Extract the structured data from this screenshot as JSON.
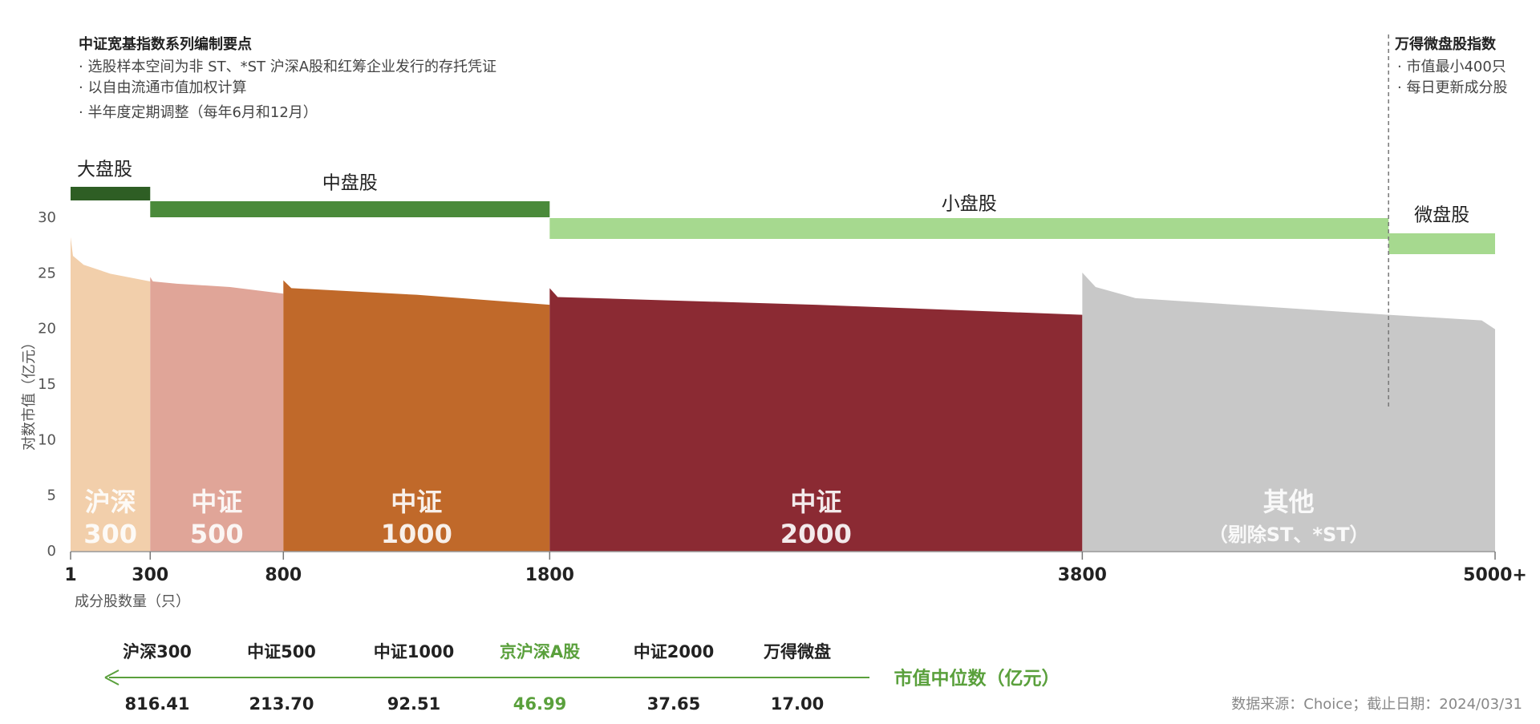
{
  "chart_data": {
    "type": "area",
    "y_label": "对数市值（亿元）",
    "x_label": "成分股数量（只）",
    "xlim": [
      1,
      5350
    ],
    "xticks": [
      1,
      300,
      800,
      1800,
      3800,
      {
        "value": 5350,
        "label": "5000+"
      }
    ],
    "ylim": [
      0,
      30
    ],
    "yticks": [
      0,
      5,
      10,
      15,
      20,
      25,
      30
    ],
    "series": [
      {
        "name": "沪深300",
        "label_lines": [
          "沪深",
          "300"
        ],
        "color": "#f2cfab",
        "x": [
          1,
          10,
          50,
          150,
          300
        ],
        "values": [
          28.3,
          26.6,
          25.8,
          25.0,
          24.3
        ]
      },
      {
        "name": "中证500",
        "label_lines": [
          "中证",
          "500"
        ],
        "color": "#e0a598",
        "x": [
          300,
          310,
          400,
          600,
          800
        ],
        "values": [
          24.7,
          24.3,
          24.1,
          23.8,
          23.2
        ]
      },
      {
        "name": "中证1000",
        "label_lines": [
          "中证",
          "1000"
        ],
        "color": "#c0692a",
        "x": [
          800,
          830,
          1300,
          1800
        ],
        "values": [
          24.4,
          23.7,
          23.1,
          22.2
        ]
      },
      {
        "name": "中证2000",
        "label_lines": [
          "中证",
          "2000"
        ],
        "color": "#8b2a33",
        "x": [
          1800,
          1830,
          2800,
          3800
        ],
        "values": [
          23.7,
          22.9,
          22.2,
          21.3
        ]
      },
      {
        "name": "其他",
        "label_lines": [
          "其他",
          "（剔除ST、*ST）"
        ],
        "color": "#c8c8c8",
        "x": [
          3800,
          3850,
          4000,
          4950,
          5300,
          5350
        ],
        "values": [
          25.1,
          23.8,
          22.8,
          21.3,
          20.8,
          20.0
        ]
      }
    ],
    "bands": [
      {
        "name": "大盘股",
        "x": [
          1,
          300
        ],
        "color": "#2e5e24"
      },
      {
        "name": "中盘股",
        "x": [
          300,
          1800
        ],
        "color": "#4a8a3a"
      },
      {
        "name": "小盘股",
        "x": [
          1800,
          4950
        ],
        "color": "#a6d98f"
      },
      {
        "name": "微盘股",
        "x": [
          4950,
          5350
        ],
        "color": "#a6d98f"
      }
    ],
    "notes": {
      "title": "中证宽基指数系列编制要点",
      "items": [
        "· 选股样本空间为非 ST、*ST 沪深A股和红筹企业发行的存托凭证",
        "· 以自由流通市值加权计算",
        "· 半年度定期调整（每年6月和12月）"
      ]
    },
    "micro_notes": {
      "title": "万得微盘股指数",
      "items": [
        "· 市值最小400只",
        "· 每日更新成分股"
      ]
    },
    "medians": {
      "title": "市值中位数（亿元）",
      "categories": [
        "沪深300",
        "中证500",
        "中证1000",
        "京沪深A股",
        "中证2000",
        "万得微盘"
      ],
      "values": [
        816.41,
        213.7,
        92.51,
        46.99,
        37.65,
        17.0
      ],
      "value_labels": [
        "816.41",
        "213.70",
        "92.51",
        "46.99",
        "37.65",
        "17.00"
      ],
      "highlight": 3,
      "highlight_color": "#5aa03c"
    },
    "source": "数据来源：Choice；截止日期：2024/03/31"
  }
}
